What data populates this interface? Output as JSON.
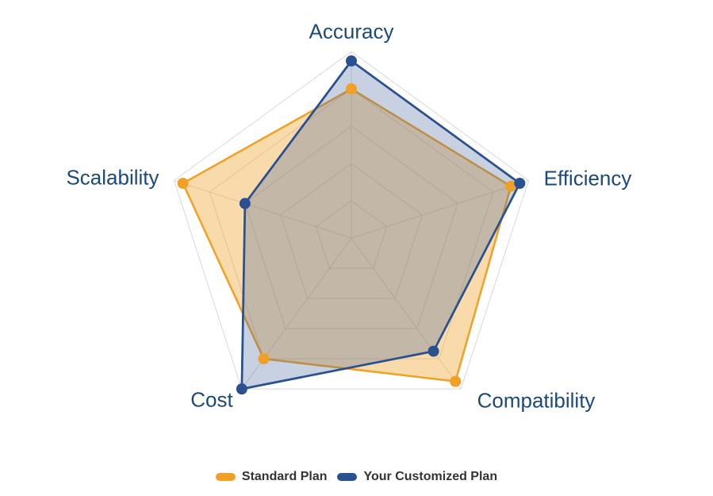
{
  "chart_data": {
    "type": "radar",
    "title": "",
    "categories": [
      "Accuracy",
      "Efficiency",
      "Compatibility",
      "Cost",
      "Scalability"
    ],
    "axis_range": [
      0,
      1
    ],
    "grid_rings": 5,
    "grid_on": true,
    "grid_color": "#d9d9d9",
    "axis_label_color": "#1b4a78",
    "legend_position": "bottom",
    "legend_text_color": "#333333",
    "series": [
      {
        "name": "Standard Plan",
        "color": "#F0A125",
        "fill": "rgba(240,162,44,0.40)",
        "line_width": 2.5,
        "marker_radius": 7,
        "values": [
          0.8,
          0.9,
          0.95,
          0.8,
          0.95
        ]
      },
      {
        "name": "Your Customized Plan",
        "color": "#2A518F",
        "fill": "rgba(70,102,160,0.30)",
        "line_width": 2.75,
        "marker_radius": 7,
        "values": [
          0.95,
          0.95,
          0.75,
          1.0,
          0.6
        ]
      }
    ]
  }
}
